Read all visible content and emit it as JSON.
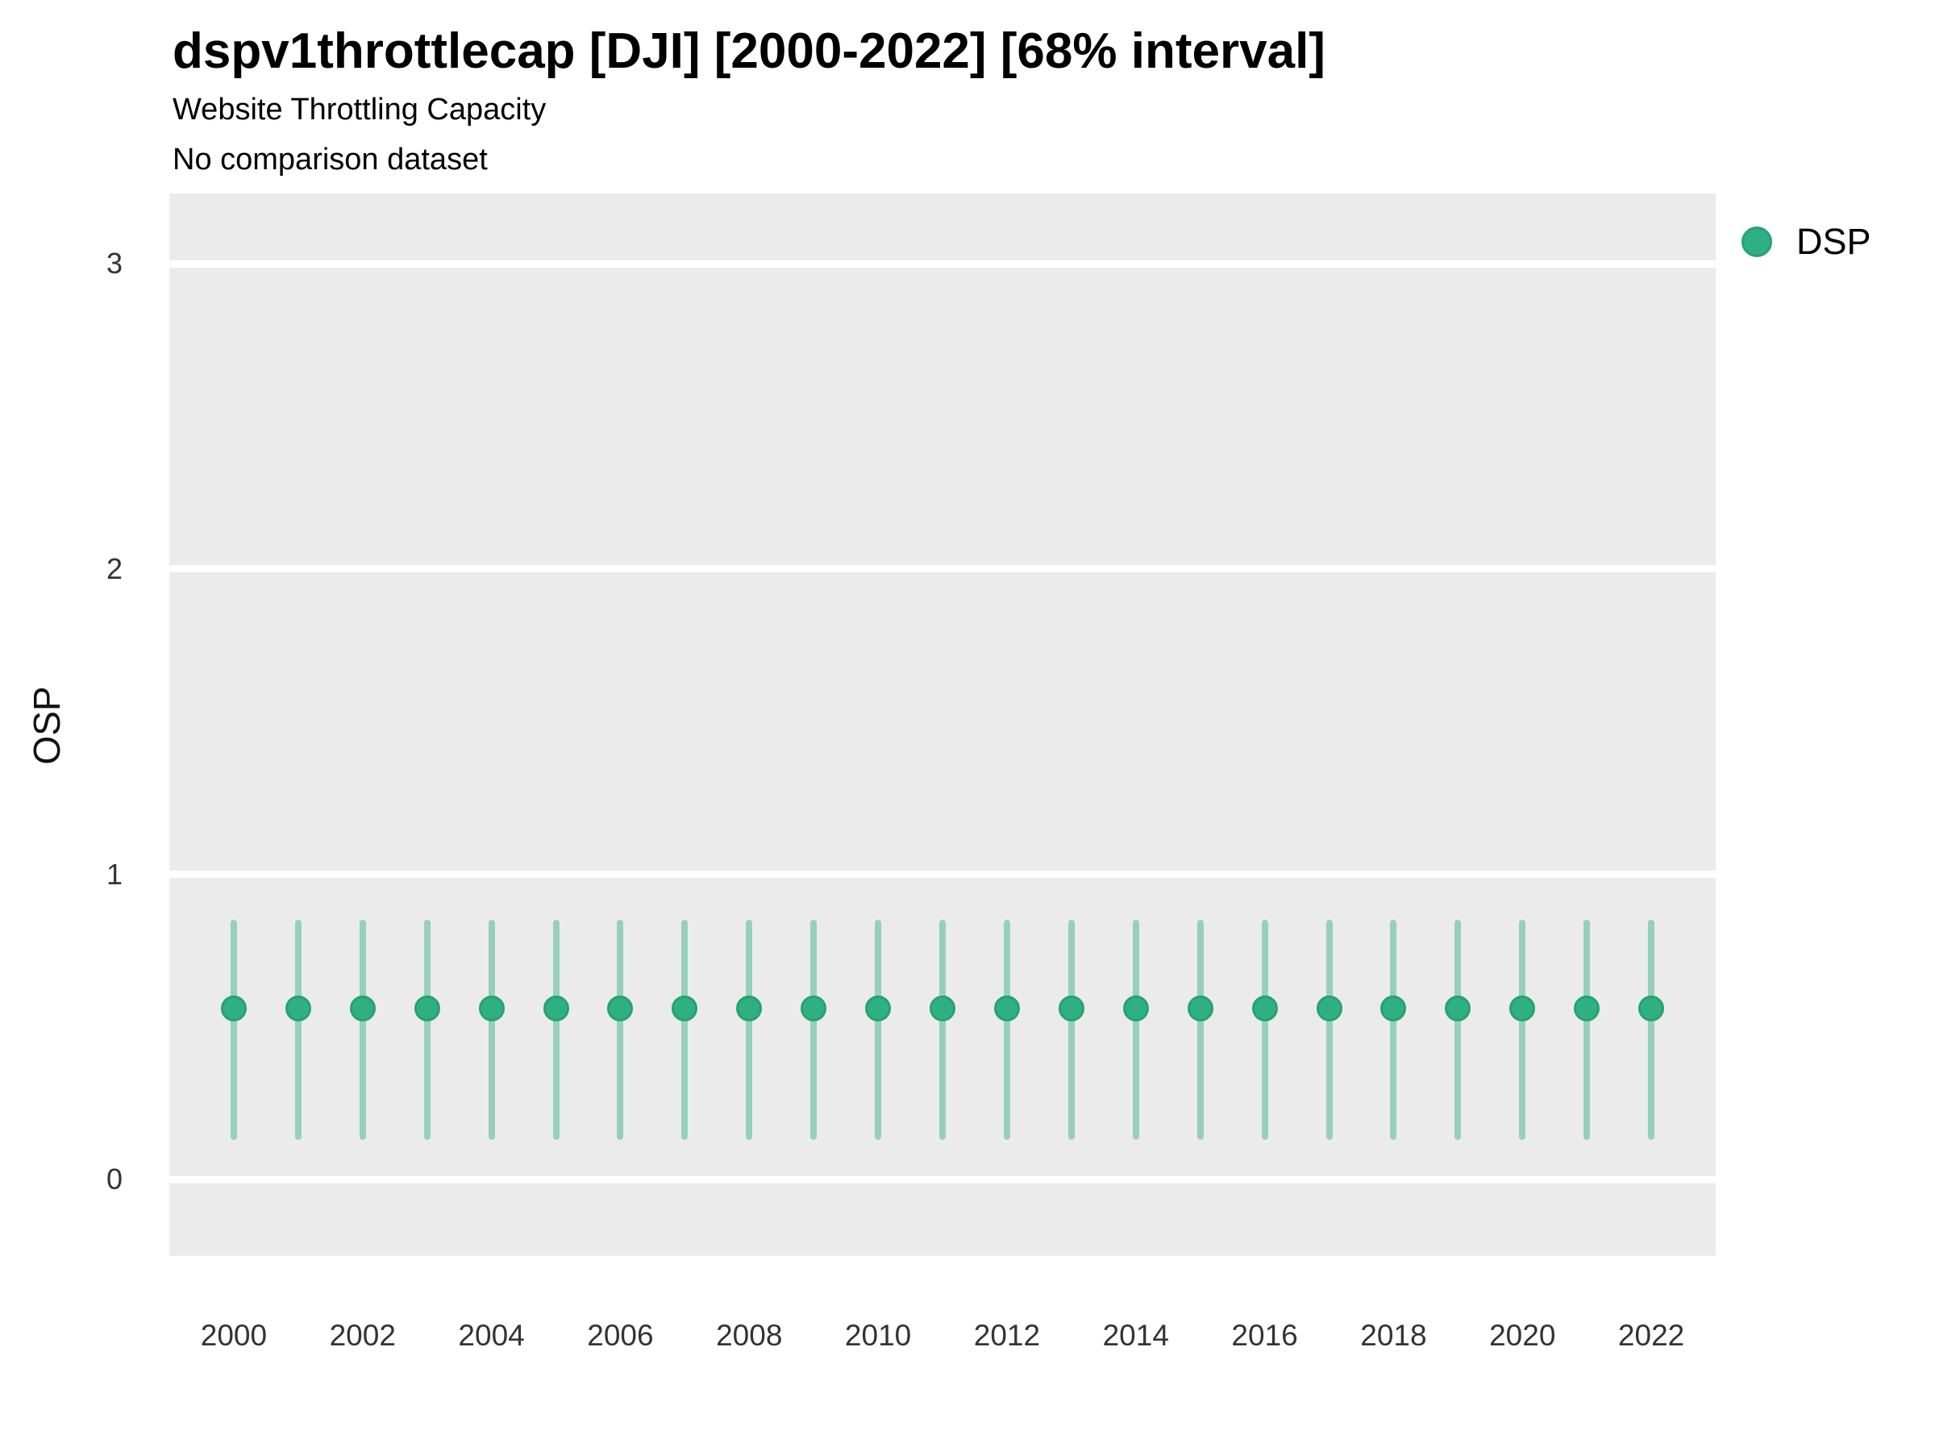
{
  "title": "dspv1throttlecap [DJI] [2000-2022] [68% interval]",
  "subtitle": "Website Throttling Capacity",
  "subtitle2": "No comparison dataset",
  "y_axis": {
    "label": "OSP"
  },
  "legend": {
    "items": [
      {
        "label": "DSP"
      }
    ]
  },
  "colors": {
    "panel_background": "#ebebeb",
    "gridline": "#ffffff",
    "marker_fill": "#2fb084",
    "marker_edge": "#27a173",
    "errorbar": "rgba(47,176,132,0.45)",
    "tick_text": "#333333",
    "title_text": "#000000"
  },
  "chart_data": {
    "type": "scatter",
    "title": "dspv1throttlecap [DJI] [2000-2022] [68% interval]",
    "subtitle": "Website Throttling Capacity",
    "annotation": "No comparison dataset",
    "xlabel": "",
    "ylabel": "OSP",
    "x": [
      2000,
      2001,
      2002,
      2003,
      2004,
      2005,
      2006,
      2007,
      2008,
      2009,
      2010,
      2011,
      2012,
      2013,
      2014,
      2015,
      2016,
      2017,
      2018,
      2019,
      2020,
      2021,
      2022
    ],
    "series": [
      {
        "name": "DSP",
        "interval_level": "68%",
        "estimates": [
          0.56,
          0.56,
          0.56,
          0.56,
          0.56,
          0.56,
          0.56,
          0.56,
          0.56,
          0.56,
          0.56,
          0.56,
          0.56,
          0.56,
          0.56,
          0.56,
          0.56,
          0.56,
          0.56,
          0.56,
          0.56,
          0.56,
          0.56
        ],
        "interval_low": [
          0.13,
          0.13,
          0.13,
          0.13,
          0.13,
          0.13,
          0.13,
          0.13,
          0.13,
          0.13,
          0.13,
          0.13,
          0.13,
          0.13,
          0.13,
          0.13,
          0.13,
          0.13,
          0.13,
          0.13,
          0.13,
          0.13,
          0.13
        ],
        "interval_high": [
          0.85,
          0.85,
          0.85,
          0.85,
          0.85,
          0.85,
          0.85,
          0.85,
          0.85,
          0.85,
          0.85,
          0.85,
          0.85,
          0.85,
          0.85,
          0.85,
          0.85,
          0.85,
          0.85,
          0.85,
          0.85,
          0.85,
          0.85
        ]
      }
    ],
    "x_ticks": [
      2000,
      2002,
      2004,
      2006,
      2008,
      2010,
      2012,
      2014,
      2016,
      2018,
      2020,
      2022
    ],
    "y_ticks": [
      0,
      1,
      2,
      3
    ],
    "xlim": [
      1999,
      2023
    ],
    "ylim": [
      -0.25,
      3.23
    ],
    "grid": "horizontal-major-only",
    "legend_position": "right-top"
  }
}
